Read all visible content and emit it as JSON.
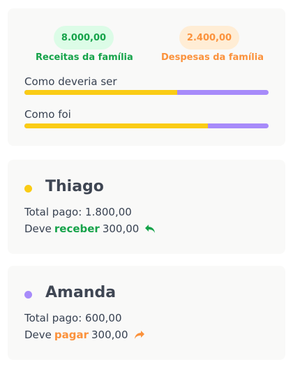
{
  "summary": {
    "income_value": "8.000,00",
    "income_label": "Receitas da família",
    "expense_value": "2.400,00",
    "expense_label": "Despesas da família",
    "bars": [
      {
        "label": "Como deveria ser",
        "yellow_fraction": 0.626
      },
      {
        "label": "Como foi",
        "yellow_fraction": 0.751
      }
    ]
  },
  "people": [
    {
      "name": "Thiago",
      "color": "#facc15",
      "paid_text": "Total pago: 1.800,00",
      "owes_prefix": "Deve",
      "action": "receber",
      "action_color": "#16a34a",
      "amount": "300,00",
      "icon": "reply-arrow-icon"
    },
    {
      "name": "Amanda",
      "color": "#a78bfa",
      "paid_text": "Total pago: 600,00",
      "owes_prefix": "Deve",
      "action": "pagar",
      "action_color": "#fb923c",
      "amount": "300,00",
      "icon": "forward-arrow-icon"
    }
  ],
  "colors": {
    "income": "#16a34a",
    "expense": "#fb923c",
    "bar_primary": "#facc15",
    "bar_secondary": "#a78bfa"
  }
}
